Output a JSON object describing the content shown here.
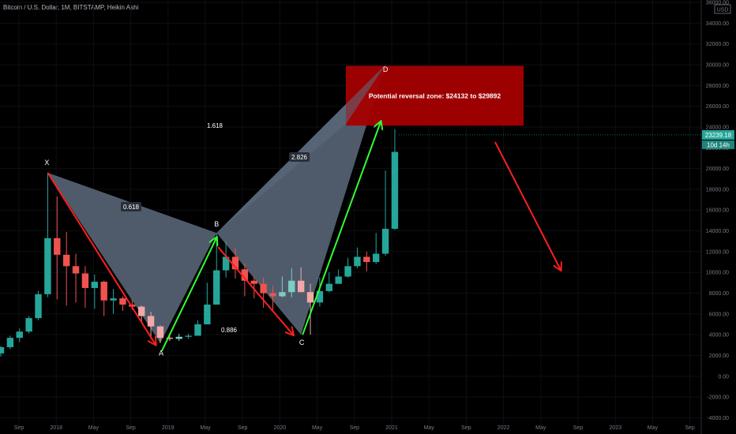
{
  "header": {
    "title": "Bitcoin / U.S. Dollar, 1M, BITSTAMP, Heikin Ashi"
  },
  "colors": {
    "up": "#26a69a",
    "down": "#ef5350",
    "up_faded": "#7fcbc4",
    "down_faded": "#f2a8a8",
    "pattern_fill": "#5d6b7d",
    "red_arrow": "#ff1f1f",
    "green_arrow": "#33ff33",
    "zone": "#a50000",
    "price_badge": "#26a69a"
  },
  "chart_data": {
    "type": "candlestick",
    "y_axis": {
      "unit": "USD",
      "ylim": [
        -4800,
        36000
      ],
      "ticks": [
        "-4000.00",
        "-2000.00",
        "0.00",
        "2000.00",
        "4000.00",
        "6000.00",
        "8000.00",
        "10000.00",
        "12000.00",
        "14000.00",
        "16000.00",
        "18000.00",
        "20000.00",
        "22000.00",
        "24000.00",
        "26000.00",
        "28000.00",
        "30000.00",
        "32000.00",
        "34000.00",
        "36000.00"
      ],
      "current_price": "23239.18",
      "countdown": "10d 14h"
    },
    "x_axis": {
      "ticks": [
        "Sep",
        "2018",
        "May",
        "Sep",
        "2019",
        "May",
        "Sep",
        "2020",
        "May",
        "Sep",
        "2021",
        "May",
        "Sep",
        "2022",
        "May",
        "Sep",
        "2023",
        "May",
        "Sep"
      ]
    },
    "candles": [
      {
        "o": 2200,
        "h": 2900,
        "l": 1900,
        "c": 2800
      },
      {
        "o": 2800,
        "h": 3900,
        "l": 2600,
        "c": 3700
      },
      {
        "o": 3700,
        "h": 4600,
        "l": 3300,
        "c": 4300
      },
      {
        "o": 4300,
        "h": 5800,
        "l": 4100,
        "c": 5600
      },
      {
        "o": 5600,
        "h": 8200,
        "l": 5400,
        "c": 7900
      },
      {
        "o": 7900,
        "h": 19600,
        "l": 7600,
        "c": 13300
      },
      {
        "o": 13300,
        "h": 17300,
        "l": 7400,
        "c": 11700
      },
      {
        "o": 11700,
        "h": 13900,
        "l": 6800,
        "c": 10600
      },
      {
        "o": 10600,
        "h": 11800,
        "l": 7100,
        "c": 9900
      },
      {
        "o": 9900,
        "h": 10600,
        "l": 6600,
        "c": 8500
      },
      {
        "o": 8500,
        "h": 9800,
        "l": 6500,
        "c": 9100
      },
      {
        "o": 9100,
        "h": 9200,
        "l": 5800,
        "c": 7300
      },
      {
        "o": 7300,
        "h": 8400,
        "l": 6000,
        "c": 7500
      },
      {
        "o": 7500,
        "h": 7700,
        "l": 6300,
        "c": 6900
      },
      {
        "o": 6900,
        "h": 7400,
        "l": 6400,
        "c": 6700
      },
      {
        "o": 6700,
        "h": 6800,
        "l": 5200,
        "c": 5800
      },
      {
        "o": 5800,
        "h": 6200,
        "l": 3600,
        "c": 4800
      },
      {
        "o": 4800,
        "h": 4900,
        "l": 3200,
        "c": 3700
      },
      {
        "o": 3700,
        "h": 4000,
        "l": 3400,
        "c": 3600
      },
      {
        "o": 3600,
        "h": 4100,
        "l": 3400,
        "c": 3800
      },
      {
        "o": 3800,
        "h": 4100,
        "l": 3600,
        "c": 3900
      },
      {
        "o": 3900,
        "h": 5400,
        "l": 3900,
        "c": 5000
      },
      {
        "o": 5000,
        "h": 9000,
        "l": 5000,
        "c": 6900
      },
      {
        "o": 6900,
        "h": 13800,
        "l": 6900,
        "c": 10200
      },
      {
        "o": 10200,
        "h": 13000,
        "l": 9500,
        "c": 11500
      },
      {
        "o": 11500,
        "h": 12300,
        "l": 9400,
        "c": 10300
      },
      {
        "o": 10300,
        "h": 10900,
        "l": 7700,
        "c": 9200
      },
      {
        "o": 9200,
        "h": 9600,
        "l": 7500,
        "c": 8900
      },
      {
        "o": 8900,
        "h": 9500,
        "l": 6600,
        "c": 8000
      },
      {
        "o": 8000,
        "h": 8700,
        "l": 6400,
        "c": 7700
      },
      {
        "o": 7700,
        "h": 9600,
        "l": 7600,
        "c": 8100
      },
      {
        "o": 8100,
        "h": 10400,
        "l": 7600,
        "c": 9200
      },
      {
        "o": 9200,
        "h": 10500,
        "l": 8500,
        "c": 8100
      },
      {
        "o": 8100,
        "h": 8900,
        "l": 4000,
        "c": 7100
      },
      {
        "o": 7100,
        "h": 9500,
        "l": 6700,
        "c": 8200
      },
      {
        "o": 8200,
        "h": 10000,
        "l": 8100,
        "c": 8900
      },
      {
        "o": 8900,
        "h": 10300,
        "l": 8900,
        "c": 9600
      },
      {
        "o": 9600,
        "h": 11400,
        "l": 9500,
        "c": 10600
      },
      {
        "o": 10600,
        "h": 12400,
        "l": 10400,
        "c": 11500
      },
      {
        "o": 11500,
        "h": 12000,
        "l": 10100,
        "c": 11000
      },
      {
        "o": 11000,
        "h": 13800,
        "l": 10800,
        "c": 11800
      },
      {
        "o": 11800,
        "h": 19800,
        "l": 11600,
        "c": 14200
      },
      {
        "o": 14200,
        "h": 23800,
        "l": 14100,
        "c": 21600
      }
    ],
    "pattern": {
      "points": [
        {
          "name": "X",
          "label": "X",
          "price": 19600
        },
        {
          "name": "A",
          "label": "A",
          "price": 3200
        },
        {
          "name": "B",
          "label": "B",
          "price": 13800
        },
        {
          "name": "C",
          "label": "C",
          "price": 4000
        },
        {
          "name": "D",
          "label": "D",
          "price": 30000
        }
      ],
      "ratios": {
        "xb": "0.618",
        "ac": "0.886",
        "xd": "1.618",
        "bd": "2.826"
      }
    },
    "reversal_zone": {
      "label": "Potential reversal zone: $24132 to $29892",
      "low": 24132,
      "high": 29892
    }
  }
}
